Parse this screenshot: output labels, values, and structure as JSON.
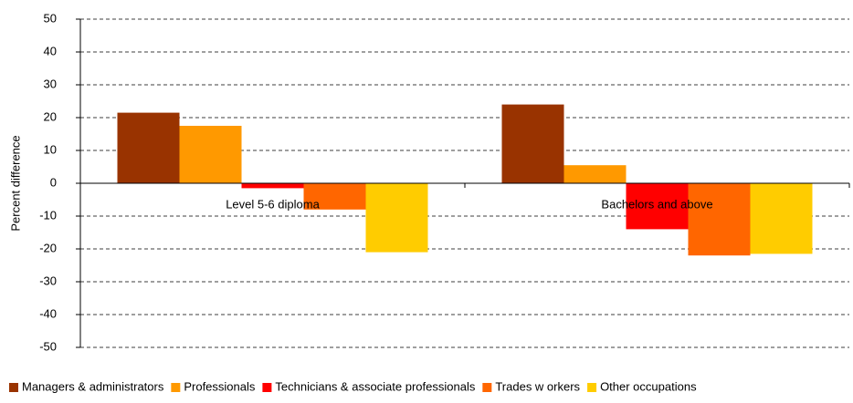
{
  "chart_data": {
    "type": "bar",
    "y_label": "Percent difference",
    "categories": [
      "Level 5-6 diploma",
      "Bachelors and above"
    ],
    "series": [
      {
        "name": "Managers & administrators",
        "color": "#993300",
        "values": [
          21.5,
          24
        ]
      },
      {
        "name": "Professionals",
        "color": "#ff9900",
        "values": [
          17.5,
          5.5
        ]
      },
      {
        "name": "Technicians & associate professionals",
        "color": "#ff0000",
        "values": [
          -1.5,
          -14
        ]
      },
      {
        "name": "Trades w orkers",
        "color": "#ff6600",
        "values": [
          -8,
          -22
        ]
      },
      {
        "name": "Other occupations",
        "color": "#ffcc00",
        "values": [
          -21,
          -21.5
        ]
      }
    ],
    "ylim": [
      -50,
      50
    ],
    "yticks": [
      -50,
      -40,
      -30,
      -20,
      -10,
      0,
      10,
      20,
      30,
      40,
      50
    ],
    "grid": true,
    "legend": "bottom"
  }
}
